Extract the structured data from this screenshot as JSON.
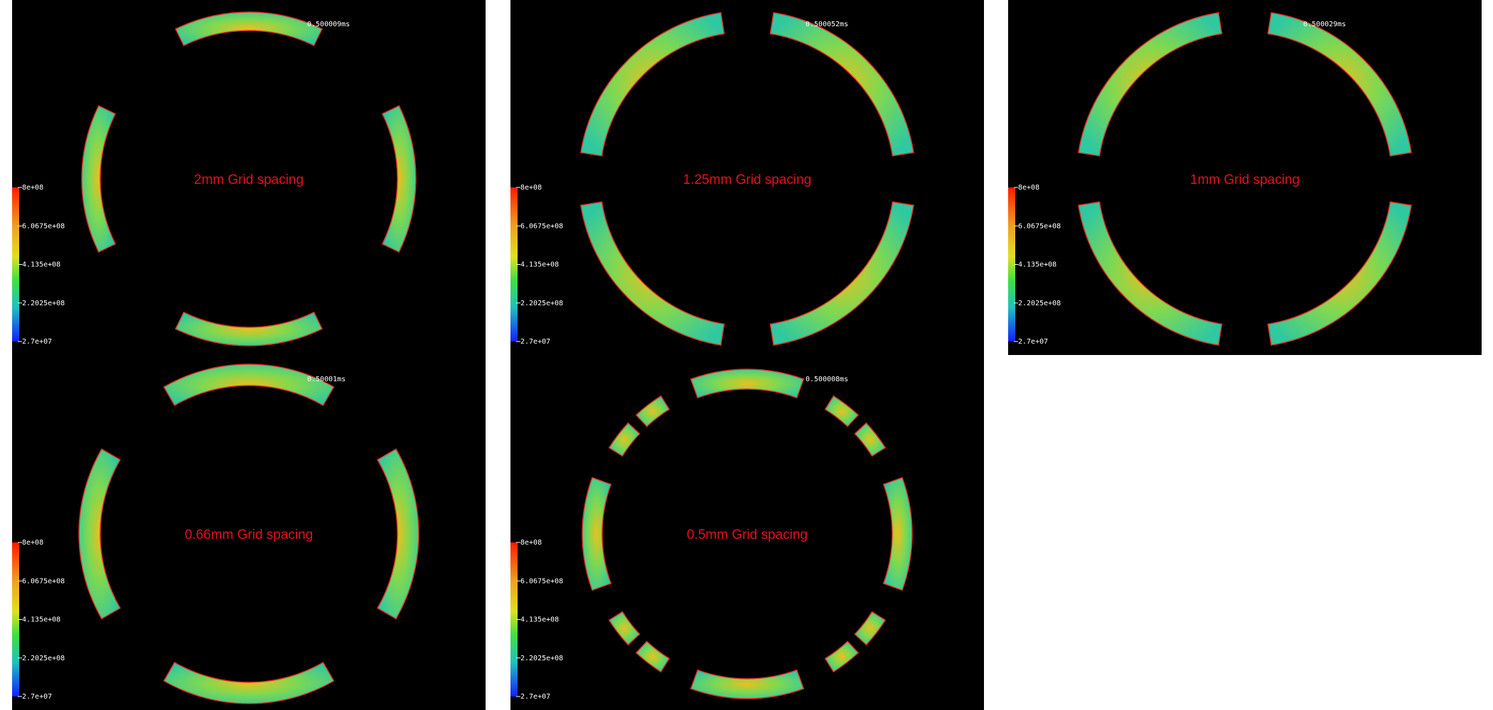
{
  "panels": [
    {
      "title": "2mm Grid spacing",
      "time": "0.500009ms"
    },
    {
      "title": "1.25mm Grid spacing",
      "time": "0.500052ms"
    },
    {
      "title": "1mm Grid spacing",
      "time": "0.500029ms"
    },
    {
      "title": "0.66mm Grid spacing",
      "time": "0.50001ms"
    },
    {
      "title": "0.5mm Grid spacing",
      "time": "0.500008ms"
    }
  ],
  "colorbar_labels": [
    "8e+08",
    "6.0675e+08",
    "4.135e+08",
    "2.2025e+08",
    "2.7e+07"
  ]
}
